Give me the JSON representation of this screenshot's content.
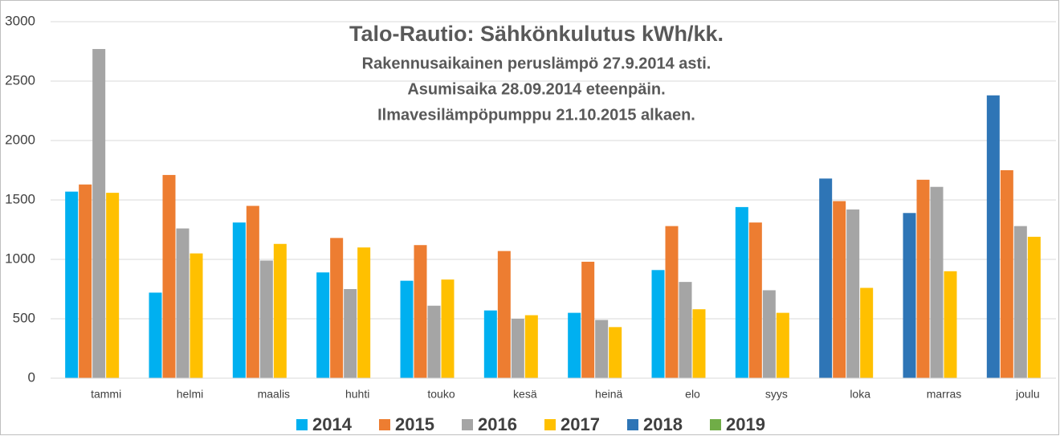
{
  "chart_data": {
    "type": "bar",
    "title": "Talo-Rautio: Sähkönkulutus kWh/kk.",
    "subtitle": [
      "Rakennusaikainen peruslämpö 27.9.2014 asti.",
      "Asumisaika 28.09.2014 eteenpäin.",
      "Ilmavesilämpöpumppu 21.10.2015 alkaen."
    ],
    "categories": [
      "tammi",
      "helmi",
      "maalis",
      "huhti",
      "touko",
      "kesä",
      "heinä",
      "elo",
      "syys",
      "loka",
      "marras",
      "joulu"
    ],
    "series": [
      {
        "name": "2014",
        "color": "#00b0f0",
        "values": [
          1570,
          720,
          1310,
          890,
          820,
          570,
          550,
          910,
          1440,
          null,
          null,
          null
        ]
      },
      {
        "name": "2015",
        "color": "#ed7d31",
        "values": [
          1630,
          1710,
          1450,
          1180,
          1120,
          1070,
          980,
          1280,
          1310,
          1490,
          1670,
          1750
        ]
      },
      {
        "name": "2016",
        "color": "#a5a5a5",
        "values": [
          2770,
          1260,
          990,
          750,
          610,
          500,
          490,
          810,
          740,
          1420,
          1610,
          1280
        ]
      },
      {
        "name": "2017",
        "color": "#ffc000",
        "values": [
          1560,
          1050,
          1130,
          1100,
          830,
          530,
          430,
          580,
          550,
          760,
          900,
          1190
        ]
      },
      {
        "name": "2018",
        "color": "#2e75b6",
        "values": [
          null,
          null,
          null,
          null,
          null,
          null,
          null,
          null,
          null,
          1680,
          1390,
          2380
        ]
      },
      {
        "name": "2019",
        "color": "#70ad47",
        "values": [
          null,
          null,
          null,
          null,
          null,
          null,
          null,
          null,
          null,
          null,
          null,
          null
        ]
      }
    ],
    "ylim": [
      0,
      3000
    ],
    "yticks": [
      0,
      500,
      1000,
      1500,
      2000,
      2500,
      3000
    ],
    "grid": true,
    "legend": "bottom"
  }
}
